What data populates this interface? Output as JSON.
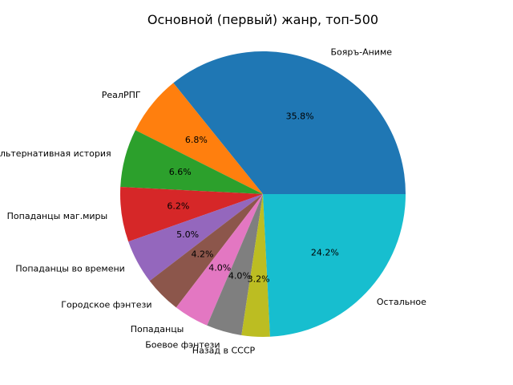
{
  "chart_data": {
    "type": "pie",
    "title": "Основной (первый) жанр, топ-500",
    "start_angle_deg": 0,
    "direction": "counterclockwise",
    "slices": [
      {
        "label": "Бояръ-Аниме",
        "value": 35.8,
        "pct_text": "35.8%",
        "color": "#1f77b4"
      },
      {
        "label": "РеалРПГ",
        "value": 6.8,
        "pct_text": "6.8%",
        "color": "#ff7f0e"
      },
      {
        "label": "Альтернативная история",
        "value": 6.6,
        "pct_text": "6.6%",
        "color": "#2ca02c"
      },
      {
        "label": "Попаданцы маг.миры",
        "value": 6.2,
        "pct_text": "6.2%",
        "color": "#d62728"
      },
      {
        "label": "Попаданцы во времени",
        "value": 5.0,
        "pct_text": "5.0%",
        "color": "#9467bd"
      },
      {
        "label": "Городское фэнтези",
        "value": 4.2,
        "pct_text": "4.2%",
        "color": "#8c564b"
      },
      {
        "label": "Попаданцы",
        "value": 4.0,
        "pct_text": "4.0%",
        "color": "#e377c2"
      },
      {
        "label": "Боевое фэнтези",
        "value": 4.0,
        "pct_text": "4.0%",
        "color": "#7f7f7f"
      },
      {
        "label": "Назад в СССР",
        "value": 3.2,
        "pct_text": "3.2%",
        "color": "#bcbd22"
      },
      {
        "label": "Остальное",
        "value": 24.2,
        "pct_text": "24.2%",
        "color": "#17becf"
      }
    ]
  }
}
